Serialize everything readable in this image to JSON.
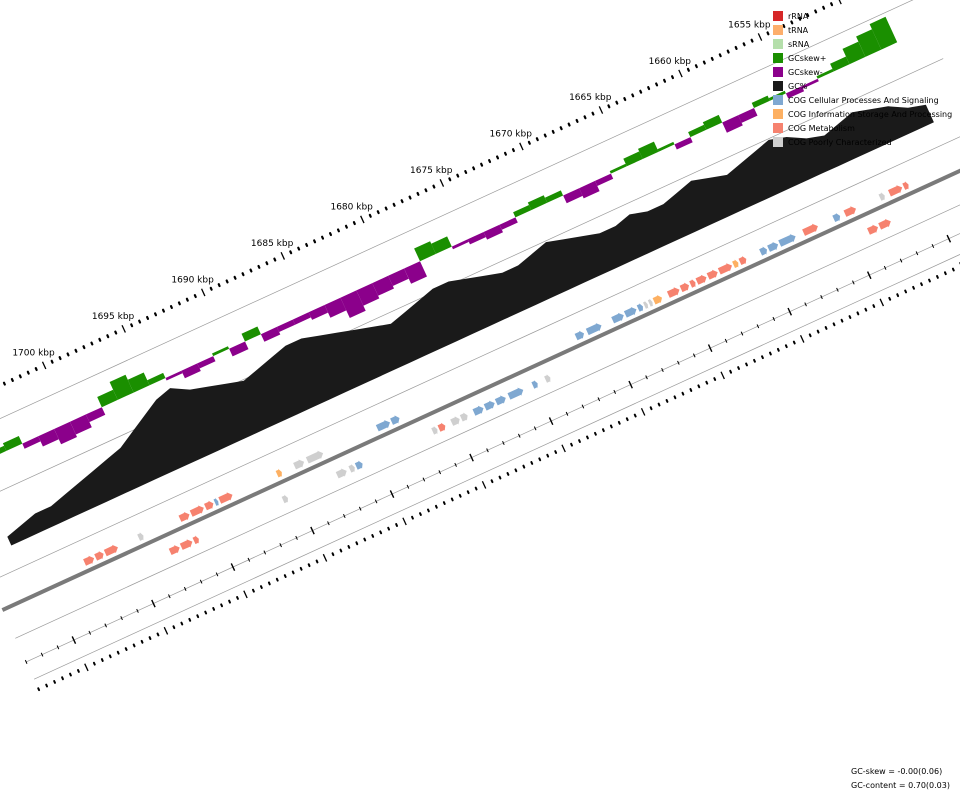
{
  "legend": [
    {
      "label": "rRNA",
      "color": "#d62728"
    },
    {
      "label": "tRNA",
      "color": "#fdae6b"
    },
    {
      "label": "sRNA",
      "color": "#b5dfab"
    },
    {
      "label": "GCskew+",
      "color": "#1a8f00"
    },
    {
      "label": "GCskew-",
      "color": "#8b008b"
    },
    {
      "label": "GC%",
      "color": "#1a1a1a"
    },
    {
      "label": "COG Cellular Processes And Signaling",
      "color": "#7fa8d1"
    },
    {
      "label": "COG Information Storage And Processing",
      "color": "#fdb062"
    },
    {
      "label": "COG Metabolism",
      "color": "#f6826f"
    },
    {
      "label": "COG Poorly Characterized",
      "color": "#cfcfcf"
    }
  ],
  "axis": {
    "unit": "kbp",
    "major_ticks": [
      {
        "pos": 1655,
        "label": "1655 kbp"
      },
      {
        "pos": 1660,
        "label": "1660 kbp"
      },
      {
        "pos": 1665,
        "label": "1665 kbp"
      },
      {
        "pos": 1670,
        "label": "1670 kbp"
      },
      {
        "pos": 1675,
        "label": "1675 kbp"
      },
      {
        "pos": 1680,
        "label": "1680 kbp"
      },
      {
        "pos": 1685,
        "label": "1685 kbp"
      },
      {
        "pos": 1690,
        "label": "1690 kbp"
      },
      {
        "pos": 1695,
        "label": "1695 kbp"
      },
      {
        "pos": 1700,
        "label": "1700 kbp"
      }
    ],
    "minor_step": 1
  },
  "stats": {
    "gc_skew": "GC-skew = -0.00(0.06)",
    "gc_content": "GC-content = 0.70(0.03)"
  },
  "colors": {
    "track_line": "#9a9a9a",
    "backbone": "#7a7a7a"
  },
  "features": {
    "forward": [
      {
        "start": 1702.0,
        "end": 1702.6,
        "cog": "COG Metabolism"
      },
      {
        "start": 1701.4,
        "end": 1701.9,
        "cog": "COG Metabolism"
      },
      {
        "start": 1700.5,
        "end": 1701.3,
        "cog": "COG Metabolism"
      },
      {
        "start": 1698.9,
        "end": 1699.2,
        "cog": "COG Poorly Characterized"
      },
      {
        "start": 1696.0,
        "end": 1696.6,
        "cog": "COG Metabolism"
      },
      {
        "start": 1695.1,
        "end": 1695.9,
        "cog": "COG Metabolism"
      },
      {
        "start": 1694.5,
        "end": 1695.0,
        "cog": "COG Metabolism"
      },
      {
        "start": 1694.2,
        "end": 1694.4,
        "cog": "COG Cellular Processes And Signaling"
      },
      {
        "start": 1693.3,
        "end": 1694.1,
        "cog": "COG Metabolism"
      },
      {
        "start": 1690.2,
        "end": 1690.5,
        "cog": "COG Information Storage And Processing"
      },
      {
        "start": 1688.8,
        "end": 1689.4,
        "cog": "COG Poorly Characterized"
      },
      {
        "start": 1687.6,
        "end": 1688.6,
        "cog": "COG Poorly Characterized"
      },
      {
        "start": 1683.4,
        "end": 1684.2,
        "cog": "COG Cellular Processes And Signaling"
      },
      {
        "start": 1682.8,
        "end": 1683.3,
        "cog": "COG Cellular Processes And Signaling"
      },
      {
        "start": 1671.2,
        "end": 1671.7,
        "cog": "COG Cellular Processes And Signaling"
      },
      {
        "start": 1670.1,
        "end": 1671.0,
        "cog": "COG Cellular Processes And Signaling"
      },
      {
        "start": 1668.7,
        "end": 1669.4,
        "cog": "COG Cellular Processes And Signaling"
      },
      {
        "start": 1667.9,
        "end": 1668.6,
        "cog": "COG Cellular Processes And Signaling"
      },
      {
        "start": 1667.5,
        "end": 1667.8,
        "cog": "COG Cellular Processes And Signaling"
      },
      {
        "start": 1667.2,
        "end": 1667.4,
        "cog": "COG Poorly Characterized"
      },
      {
        "start": 1666.9,
        "end": 1667.1,
        "cog": "COG Poorly Characterized"
      },
      {
        "start": 1666.3,
        "end": 1666.8,
        "cog": "COG Information Storage And Processing"
      },
      {
        "start": 1665.2,
        "end": 1665.9,
        "cog": "COG Metabolism"
      },
      {
        "start": 1664.6,
        "end": 1665.1,
        "cog": "COG Metabolism"
      },
      {
        "start": 1664.2,
        "end": 1664.5,
        "cog": "COG Metabolism"
      },
      {
        "start": 1663.5,
        "end": 1664.1,
        "cog": "COG Metabolism"
      },
      {
        "start": 1662.8,
        "end": 1663.4,
        "cog": "COG Metabolism"
      },
      {
        "start": 1661.9,
        "end": 1662.7,
        "cog": "COG Metabolism"
      },
      {
        "start": 1661.5,
        "end": 1661.8,
        "cog": "COG Information Storage And Processing"
      },
      {
        "start": 1661.0,
        "end": 1661.4,
        "cog": "COG Metabolism"
      },
      {
        "start": 1659.7,
        "end": 1660.1,
        "cog": "COG Cellular Processes And Signaling"
      },
      {
        "start": 1659.0,
        "end": 1659.6,
        "cog": "COG Cellular Processes And Signaling"
      },
      {
        "start": 1657.9,
        "end": 1658.9,
        "cog": "COG Cellular Processes And Signaling"
      },
      {
        "start": 1656.5,
        "end": 1657.4,
        "cog": "COG Metabolism"
      },
      {
        "start": 1655.1,
        "end": 1655.5,
        "cog": "COG Cellular Processes And Signaling"
      },
      {
        "start": 1654.1,
        "end": 1654.8,
        "cog": "COG Metabolism"
      },
      {
        "start": 1652.3,
        "end": 1652.6,
        "cog": "COG Poorly Characterized"
      },
      {
        "start": 1651.2,
        "end": 1652.0,
        "cog": "COG Metabolism"
      },
      {
        "start": 1650.8,
        "end": 1651.1,
        "cog": "COG Metabolism"
      }
    ],
    "reverse": [
      {
        "start": 1696.1,
        "end": 1696.4,
        "cog": "COG Metabolism"
      },
      {
        "start": 1696.5,
        "end": 1697.2,
        "cog": "COG Metabolism"
      },
      {
        "start": 1697.3,
        "end": 1697.9,
        "cog": "COG Metabolism"
      },
      {
        "start": 1690.5,
        "end": 1690.8,
        "cog": "COG Poorly Characterized"
      },
      {
        "start": 1685.8,
        "end": 1686.2,
        "cog": "COG Cellular Processes And Signaling"
      },
      {
        "start": 1686.3,
        "end": 1686.6,
        "cog": "COG Poorly Characterized"
      },
      {
        "start": 1686.8,
        "end": 1687.4,
        "cog": "COG Poorly Characterized"
      },
      {
        "start": 1680.6,
        "end": 1681.0,
        "cog": "COG Metabolism"
      },
      {
        "start": 1681.1,
        "end": 1681.4,
        "cog": "COG Poorly Characterized"
      },
      {
        "start": 1679.2,
        "end": 1679.6,
        "cog": "COG Poorly Characterized"
      },
      {
        "start": 1679.7,
        "end": 1680.2,
        "cog": "COG Poorly Characterized"
      },
      {
        "start": 1678.2,
        "end": 1678.8,
        "cog": "COG Cellular Processes And Signaling"
      },
      {
        "start": 1677.5,
        "end": 1678.1,
        "cog": "COG Cellular Processes And Signaling"
      },
      {
        "start": 1676.8,
        "end": 1677.4,
        "cog": "COG Cellular Processes And Signaling"
      },
      {
        "start": 1675.7,
        "end": 1676.6,
        "cog": "COG Cellular Processes And Signaling"
      },
      {
        "start": 1674.8,
        "end": 1675.1,
        "cog": "COG Cellular Processes And Signaling"
      },
      {
        "start": 1674.0,
        "end": 1674.3,
        "cog": "COG Poorly Characterized"
      },
      {
        "start": 1653.4,
        "end": 1654.0,
        "cog": "COG Metabolism"
      },
      {
        "start": 1652.6,
        "end": 1653.3,
        "cog": "COG Metabolism"
      }
    ]
  },
  "gc_profile": {
    "start": 1648,
    "end": 1706,
    "gc": [
      0.66,
      0.67,
      0.69,
      0.7,
      0.71,
      0.7,
      0.69,
      0.7,
      0.72,
      0.73,
      0.72,
      0.71,
      0.7,
      0.71,
      0.72,
      0.71,
      0.7,
      0.7,
      0.71,
      0.7,
      0.7,
      0.71,
      0.72,
      0.73,
      0.72,
      0.71,
      0.71,
      0.72,
      0.73,
      0.74,
      0.74,
      0.73,
      0.72,
      0.71,
      0.72,
      0.73,
      0.74,
      0.75,
      0.76,
      0.76,
      0.75,
      0.74,
      0.73,
      0.74,
      0.75,
      0.76,
      0.78,
      0.77,
      0.75,
      0.73,
      0.71,
      0.7,
      0.69,
      0.68,
      0.67,
      0.66,
      0.66,
      0.65,
      0.64
    ],
    "skew": [
      0.1,
      0.08,
      0.06,
      0.03,
      0.01,
      -0.01,
      -0.02,
      0.01,
      0.02,
      -0.03,
      -0.04,
      0.03,
      0.02,
      -0.02,
      0.01,
      0.04,
      0.03,
      0.01,
      -0.02,
      -0.04,
      -0.03,
      0.02,
      0.03,
      0.02,
      -0.02,
      -0.03,
      -0.02,
      -0.01,
      0.04,
      0.05,
      -0.06,
      -0.04,
      -0.05,
      -0.06,
      -0.08,
      -0.05,
      -0.03,
      -0.02,
      -0.02,
      -0.03,
      0.03,
      -0.03,
      0.01,
      -0.02,
      -0.03,
      -0.01,
      0.02,
      0.05,
      0.07,
      0.04,
      -0.03,
      -0.05,
      -0.06,
      -0.04,
      -0.02,
      0.03,
      0.02,
      -0.01,
      0.02
    ]
  }
}
